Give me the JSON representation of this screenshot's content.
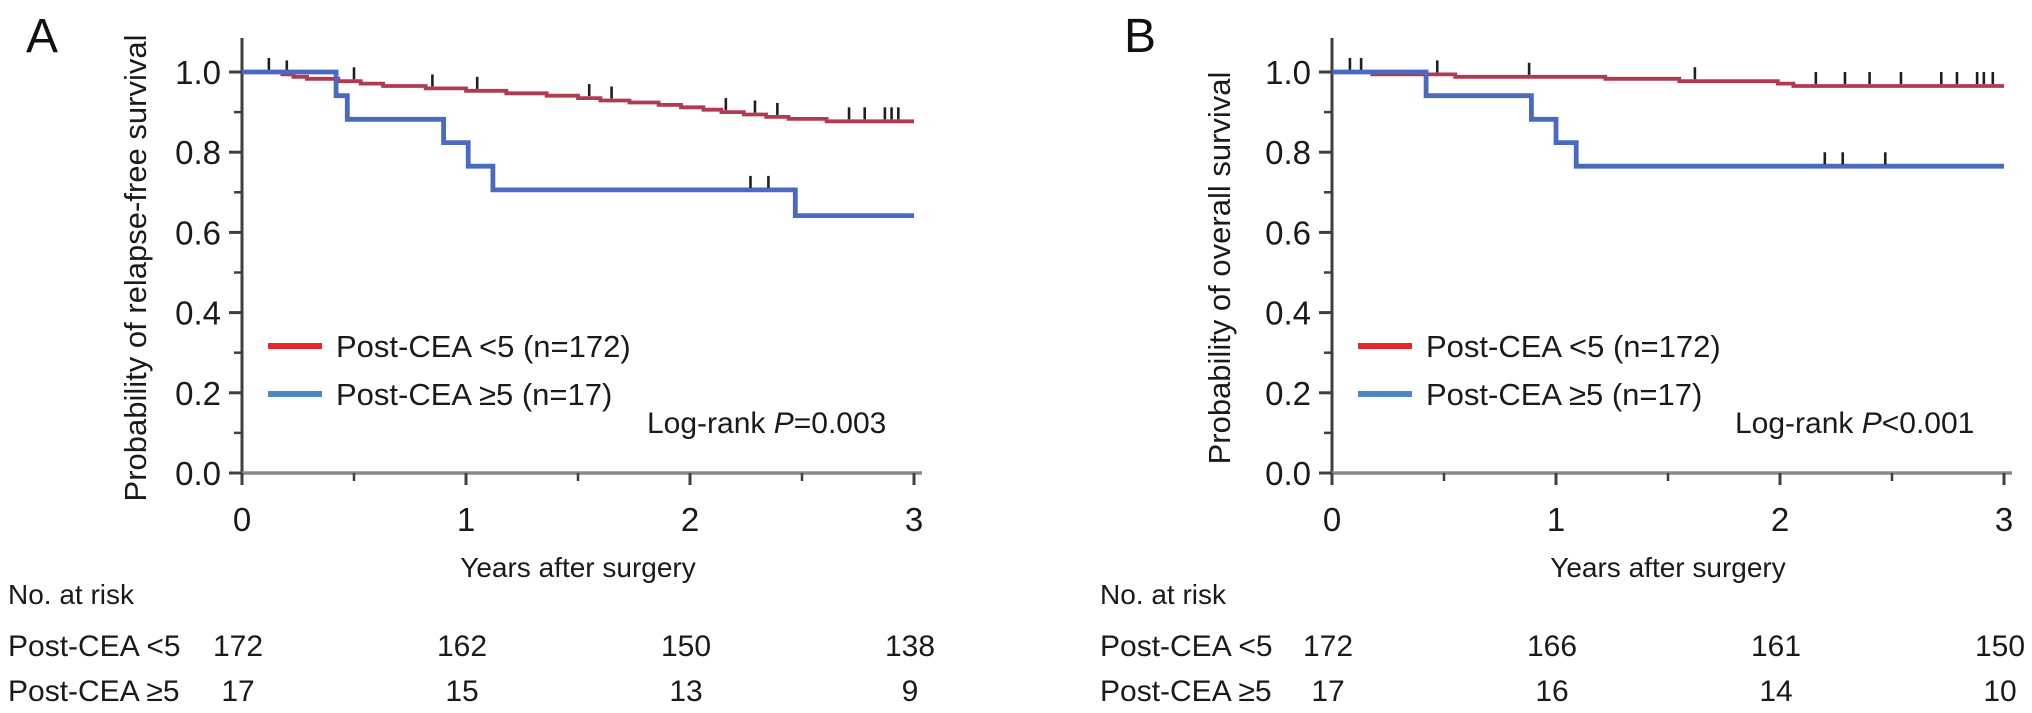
{
  "chart_data": [
    {
      "type": "line",
      "subtype": "kaplan-meier-step",
      "panel_label": "A",
      "ylabel": "Probability of relapse-free survival",
      "xlabel": "Years after surgery",
      "xlim": [
        0,
        3
      ],
      "ylim": [
        0.0,
        1.0
      ],
      "xticks": [
        0,
        1,
        2,
        3
      ],
      "xticks_minor": [
        0.5,
        1.5,
        2.5
      ],
      "yticks": [
        0.0,
        0.2,
        0.4,
        0.6,
        0.8,
        1.0
      ],
      "yticks_minor": [
        0.1,
        0.3,
        0.5,
        0.7,
        0.9
      ],
      "grid": false,
      "legend_position": "lower-left-inside",
      "series": [
        {
          "name": "Post-CEA <5 (n=172)",
          "color": "#b23a50",
          "legend_color": "#e8262a",
          "start": 1.0,
          "steps": [
            [
              0.18,
              0.994
            ],
            [
              0.23,
              0.988
            ],
            [
              0.29,
              0.983
            ],
            [
              0.43,
              0.977
            ],
            [
              0.53,
              0.971
            ],
            [
              0.63,
              0.965
            ],
            [
              0.82,
              0.959
            ],
            [
              1.0,
              0.953
            ],
            [
              1.18,
              0.947
            ],
            [
              1.36,
              0.941
            ],
            [
              1.5,
              0.935
            ],
            [
              1.6,
              0.929
            ],
            [
              1.73,
              0.924
            ],
            [
              1.86,
              0.918
            ],
            [
              1.96,
              0.912
            ],
            [
              2.06,
              0.906
            ],
            [
              2.14,
              0.9
            ],
            [
              2.24,
              0.894
            ],
            [
              2.34,
              0.888
            ],
            [
              2.44,
              0.883
            ],
            [
              2.61,
              0.877
            ]
          ],
          "end_value": 0.877,
          "censor_times": [
            0.12,
            0.2,
            0.5,
            0.85,
            1.05,
            1.55,
            1.65,
            2.16,
            2.29,
            2.39,
            2.71,
            2.78,
            2.87,
            2.9,
            2.93
          ]
        },
        {
          "name": "Post-CEA ≥5 (n=17)",
          "color": "#4a6ac2",
          "legend_color": "#4d86c5",
          "start": 1.0,
          "steps": [
            [
              0.42,
              0.941
            ],
            [
              0.47,
              0.882
            ],
            [
              0.9,
              0.824
            ],
            [
              1.01,
              0.765
            ],
            [
              1.12,
              0.706
            ],
            [
              2.47,
              0.642
            ]
          ],
          "end_value": 0.642,
          "censor_times": [
            2.27,
            2.35
          ]
        }
      ],
      "logrank": {
        "prefix": "Log-rank ",
        "p_symbol": "P",
        "p_text": "=0.003",
        "color": "#ee2f28"
      },
      "risk_table": {
        "header": "No. at risk",
        "time_points": [
          0,
          1,
          2,
          3
        ],
        "rows": [
          {
            "label": "Post-CEA <5",
            "counts": [
              "172",
              "162",
              "150",
              "138"
            ]
          },
          {
            "label": "Post-CEA ≥5",
            "counts": [
              "17",
              "15",
              "13",
              "9"
            ]
          }
        ]
      }
    },
    {
      "type": "line",
      "subtype": "kaplan-meier-step",
      "panel_label": "B",
      "ylabel": "Probability of overall survival",
      "xlabel": "Years after surgery",
      "xlim": [
        0,
        3
      ],
      "ylim": [
        0.0,
        1.0
      ],
      "xticks": [
        0,
        1,
        2,
        3
      ],
      "xticks_minor": [
        0.5,
        1.5,
        2.5
      ],
      "yticks": [
        0.0,
        0.2,
        0.4,
        0.6,
        0.8,
        1.0
      ],
      "yticks_minor": [
        0.1,
        0.3,
        0.5,
        0.7,
        0.9
      ],
      "grid": false,
      "legend_position": "lower-left-inside",
      "series": [
        {
          "name": "Post-CEA <5 (n=172)",
          "color": "#b23a50",
          "legend_color": "#e8262a",
          "start": 1.0,
          "steps": [
            [
              0.18,
              0.994
            ],
            [
              0.55,
              0.988
            ],
            [
              1.22,
              0.983
            ],
            [
              1.55,
              0.977
            ],
            [
              1.99,
              0.971
            ],
            [
              2.06,
              0.965
            ]
          ],
          "end_value": 0.965,
          "censor_times": [
            0.08,
            0.13,
            0.47,
            0.88,
            1.62,
            2.16,
            2.29,
            2.4,
            2.54,
            2.72,
            2.79,
            2.88,
            2.91,
            2.95
          ]
        },
        {
          "name": "Post-CEA ≥5 (n=17)",
          "color": "#4a6ac2",
          "legend_color": "#4d86c5",
          "start": 1.0,
          "steps": [
            [
              0.42,
              0.941
            ],
            [
              0.89,
              0.882
            ],
            [
              1.0,
              0.824
            ],
            [
              1.09,
              0.765
            ]
          ],
          "end_value": 0.765,
          "censor_times": [
            2.2,
            2.28,
            2.47
          ]
        }
      ],
      "logrank": {
        "prefix": "Log-rank ",
        "p_symbol": "P",
        "p_text": "<0.001",
        "color": "#ee2f28"
      },
      "risk_table": {
        "header": "No. at risk",
        "time_points": [
          0,
          1,
          2,
          3
        ],
        "rows": [
          {
            "label": "Post-CEA <5",
            "counts": [
              "172",
              "166",
              "161",
              "150"
            ]
          },
          {
            "label": "Post-CEA ≥5",
            "counts": [
              "17",
              "16",
              "14",
              "10"
            ]
          }
        ]
      }
    }
  ]
}
